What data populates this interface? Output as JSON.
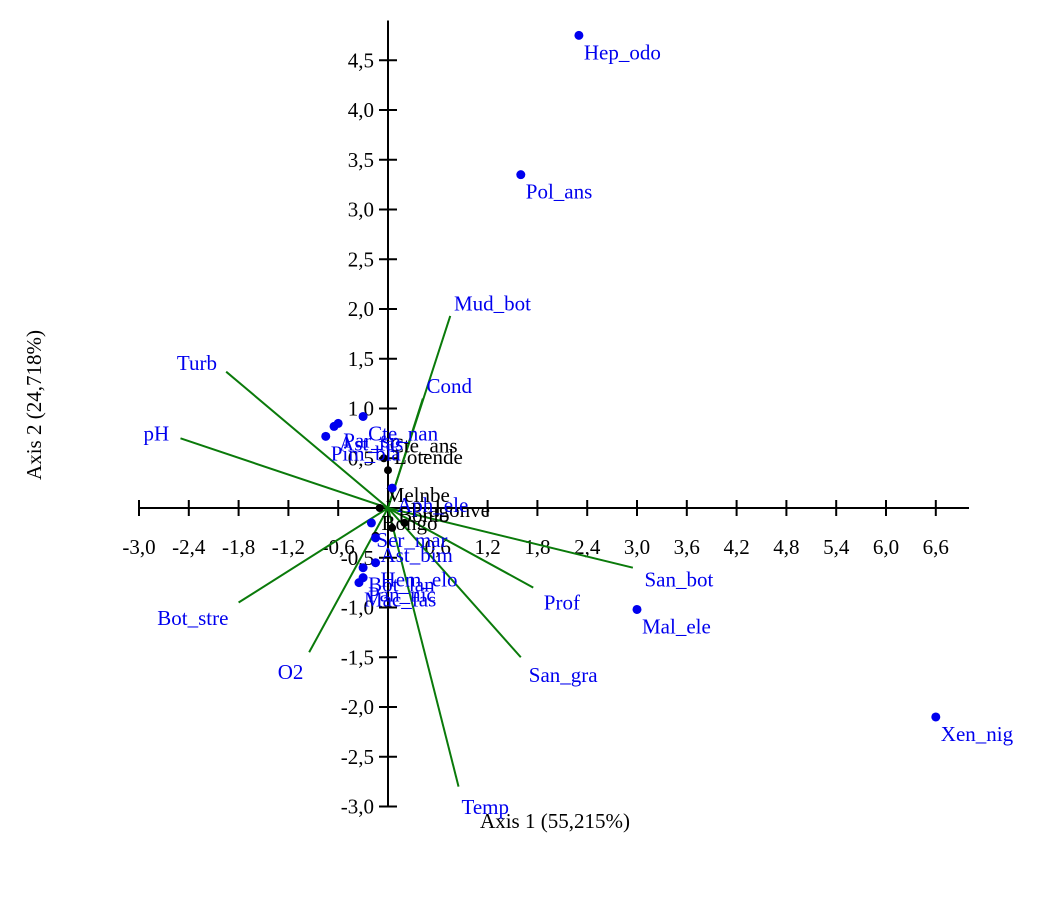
{
  "chart_data": {
    "type": "scatter",
    "subtype": "biplot",
    "xlabel": "Axis 1 (55,215%)",
    "ylabel": "Axis 2 (24,718%)",
    "xlim": [
      -3.0,
      7.0
    ],
    "ylim": [
      -3.0,
      4.9
    ],
    "x_ticks": [
      -3.0,
      -2.4,
      -1.8,
      -1.2,
      -0.6,
      0,
      0.6,
      1.2,
      1.8,
      2.4,
      3.0,
      3.6,
      4.2,
      4.8,
      5.4,
      6.0,
      6.6
    ],
    "x_tick_labels": [
      "-3,0",
      "-2,4",
      "-1,8",
      "-1,2",
      "-0,6",
      "0",
      "0,6",
      "1,2",
      "1,8",
      "2,4",
      "3,0",
      "3,6",
      "4,2",
      "4,8",
      "5,4",
      "6,0",
      "6,6"
    ],
    "y_ticks": [
      -3.0,
      -2.5,
      -2.0,
      -1.5,
      -1.0,
      -0.5,
      0,
      0.5,
      1.0,
      1.5,
      2.0,
      2.5,
      3.0,
      3.5,
      4.0,
      4.5
    ],
    "y_tick_labels": [
      "-3,0",
      "-2,5",
      "-2,0",
      "-1,5",
      "-1,0",
      "-0,5",
      "0",
      "0,5",
      "1,0",
      "1,5",
      "2,0",
      "2,5",
      "3,0",
      "3,5",
      "4,0",
      "4,5"
    ],
    "grid": false,
    "colors": {
      "species": "#0000ee",
      "samples": "#000000",
      "vectors": "#0a7a0a",
      "axes": "#000000"
    },
    "vectors": [
      {
        "name": "Mud_bot",
        "x": 0.75,
        "y": 1.93,
        "label": "Mud_bot"
      },
      {
        "name": "Turb",
        "x": -1.95,
        "y": 1.37,
        "label": "Turb"
      },
      {
        "name": "Cond",
        "x": 0.42,
        "y": 1.1,
        "label": "Cond"
      },
      {
        "name": "pH",
        "x": -2.5,
        "y": 0.7,
        "label": "pH"
      },
      {
        "name": "San_bot",
        "x": 2.95,
        "y": -0.6,
        "label": "San_bot"
      },
      {
        "name": "Prof",
        "x": 1.75,
        "y": -0.8,
        "label": "Prof"
      },
      {
        "name": "San_gra",
        "x": 1.6,
        "y": -1.5,
        "label": "San_gra"
      },
      {
        "name": "Temp",
        "x": 0.85,
        "y": -2.8,
        "label": "Temp"
      },
      {
        "name": "Bot_stre",
        "x": -1.8,
        "y": -0.95,
        "label": "Bot_stre"
      },
      {
        "name": "O2",
        "x": -0.95,
        "y": -1.45,
        "label": "O2"
      }
    ],
    "species": [
      {
        "name": "Hep_odo",
        "x": 2.3,
        "y": 4.75,
        "label": "Hep_odo"
      },
      {
        "name": "Pol_ans",
        "x": 1.6,
        "y": 3.35,
        "label": "Pol_ans"
      },
      {
        "name": "Mal_ele",
        "x": 3.0,
        "y": -1.02,
        "label": "Mal_ele"
      },
      {
        "name": "Xen_nig",
        "x": 6.6,
        "y": -2.1,
        "label": "Xen_nig"
      },
      {
        "name": "Cte_nan",
        "x": -0.3,
        "y": 0.92,
        "label": "Cte_nan"
      },
      {
        "name": "Par_sp",
        "x": -0.6,
        "y": 0.85,
        "label": "Par_sp"
      },
      {
        "name": "Ast_fas",
        "x": -0.65,
        "y": 0.82,
        "label": "Ast_fas"
      },
      {
        "name": "Pim_bla",
        "x": -0.75,
        "y": 0.72,
        "label": "Pim_bla"
      },
      {
        "name": "Aph_ele",
        "x": 0.05,
        "y": 0.2,
        "label": "Aph_ele"
      },
      {
        "name": "Hem_elo",
        "x": -0.15,
        "y": -0.55,
        "label": "Hem_elo"
      },
      {
        "name": "Bot_lan",
        "x": -0.3,
        "y": -0.6,
        "label": "Bot_lan"
      },
      {
        "name": "Mac_fas",
        "x": -0.35,
        "y": -0.75,
        "label": "Mac_fas"
      },
      {
        "name": "Pan_nic",
        "x": -0.3,
        "y": -0.7,
        "label": "Pan_nic"
      },
      {
        "name": "Ast_bim",
        "x": -0.15,
        "y": -0.3,
        "label": "Ast_bim"
      },
      {
        "name": "Ser_mar",
        "x": -0.2,
        "y": -0.15,
        "label": "Ser_mar"
      }
    ],
    "samples": [
      {
        "name": "Lotende",
        "x": 0.0,
        "y": 0.38,
        "label": "Lotende"
      },
      {
        "name": "Cte_ans",
        "x": -0.05,
        "y": 0.5,
        "label": "Cte_ans"
      },
      {
        "name": "Melnbe",
        "x": -0.1,
        "y": 0.0,
        "label": "Melnbe"
      },
      {
        "name": "Pragonve",
        "x": 0.2,
        "y": -0.15,
        "label": "Pragonve"
      },
      {
        "name": "Bongo",
        "x": -0.15,
        "y": -0.28,
        "label": "Bongo"
      },
      {
        "name": "Bonlo",
        "x": 0.05,
        "y": -0.2,
        "label": "Bonlo"
      }
    ]
  }
}
